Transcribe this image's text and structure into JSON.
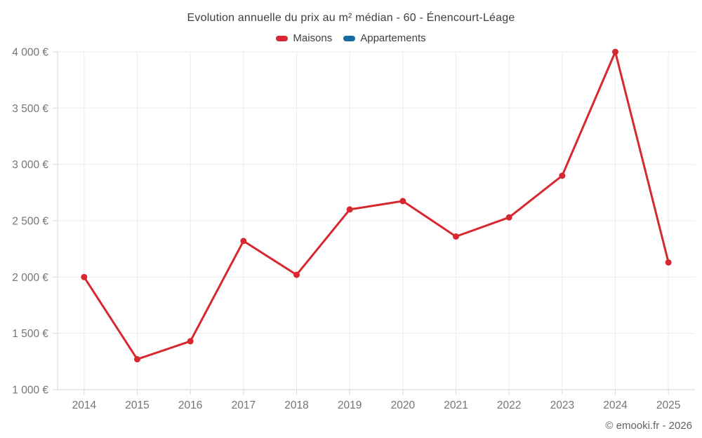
{
  "title": "Evolution annuelle du prix au m² médian - 60 - Énencourt-Léage",
  "legend": [
    {
      "label": "Maisons",
      "color": "#d7272f"
    },
    {
      "label": "Appartements",
      "color": "#176ba0"
    }
  ],
  "footer": "© emooki.fr - 2026",
  "colors": {
    "grid": "#ececec",
    "axis": "#d6d6d6",
    "tick": "#d6d6d6",
    "tick_label": "#757575",
    "title_text": "#3c4043"
  },
  "chart_data": {
    "type": "line",
    "title": "Evolution annuelle du prix au m² médian - 60 - Énencourt-Léage",
    "categories": [
      "2014",
      "2015",
      "2016",
      "2017",
      "2018",
      "2019",
      "2020",
      "2021",
      "2022",
      "2023",
      "2024",
      "2025"
    ],
    "series": [
      {
        "name": "Maisons",
        "color": "#d7272f",
        "values": [
          2000,
          1270,
          1430,
          2320,
          2020,
          2600,
          2675,
          2360,
          2530,
          2900,
          4000,
          2130
        ]
      },
      {
        "name": "Appartements",
        "color": "#176ba0",
        "values": []
      }
    ],
    "xlabel": "",
    "ylabel": "",
    "ylim": [
      1000,
      4000
    ],
    "ytick_step": 500,
    "ytick_labels": [
      "1 000 €",
      "1 500 €",
      "2 000 €",
      "2 500 €",
      "3 000 €",
      "3 500 €",
      "4 000 €"
    ],
    "grid": true,
    "legend_position": "top",
    "marker": "circle"
  }
}
